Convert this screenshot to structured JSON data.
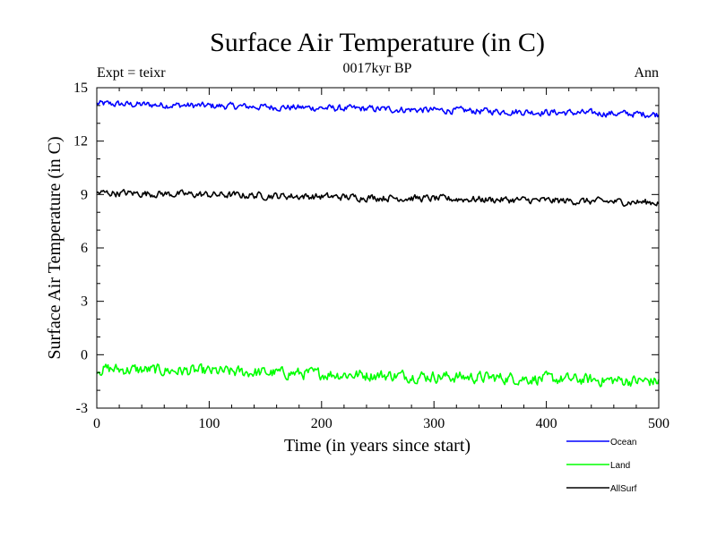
{
  "chart_data": {
    "type": "line",
    "title": "Surface Air Temperature (in C)",
    "subtitle": "0017kyr BP",
    "left_note": "Expt = teixr",
    "right_note": "Ann",
    "xlabel": "Time (in years since start)",
    "ylabel": "Surface Air Temperature (in C)",
    "xlim": [
      0,
      500
    ],
    "ylim": [
      -3,
      15
    ],
    "xticks": [
      0,
      100,
      200,
      300,
      400,
      500
    ],
    "yticks": [
      -3,
      0,
      3,
      6,
      9,
      12,
      15
    ],
    "grid": false,
    "legend_position": "bottom-right",
    "series": [
      {
        "name": "Ocean",
        "color": "#0000ff",
        "start": 14.1,
        "end": 13.5,
        "noise": 0.16
      },
      {
        "name": "Land",
        "color": "#00ff00",
        "start": -0.8,
        "end": -1.5,
        "noise": 0.28
      },
      {
        "name": "AllSurf",
        "color": "#000000",
        "start": 9.1,
        "end": 8.55,
        "noise": 0.17
      }
    ]
  }
}
